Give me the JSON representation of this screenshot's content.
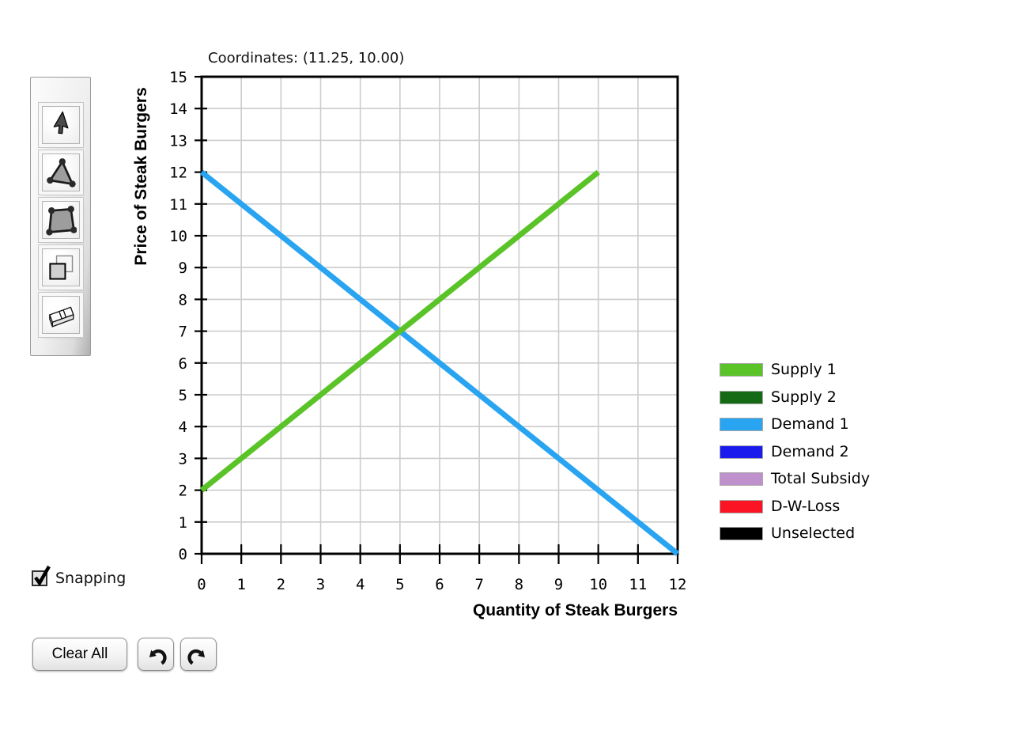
{
  "coordinates_label": "Coordinates: (11.25, 10.00)",
  "toolbar": {
    "tools": [
      {
        "id": "select",
        "icon": "cursor-icon"
      },
      {
        "id": "triangle",
        "icon": "triangle-icon"
      },
      {
        "id": "polygon",
        "icon": "polygon-icon"
      },
      {
        "id": "duplicate",
        "icon": "duplicate-icon"
      },
      {
        "id": "eraser",
        "icon": "eraser-icon"
      }
    ]
  },
  "chart_data": {
    "type": "line",
    "title": "",
    "xlabel": "Quantity of Steak Burgers",
    "ylabel": "Price of Steak Burgers",
    "xlim": [
      0,
      12
    ],
    "ylim": [
      0,
      15
    ],
    "xticks": [
      0,
      1,
      2,
      3,
      4,
      5,
      6,
      7,
      8,
      9,
      10,
      11,
      12
    ],
    "yticks": [
      0,
      1,
      2,
      3,
      4,
      5,
      6,
      7,
      8,
      9,
      10,
      11,
      12,
      13,
      14,
      15
    ],
    "grid": true,
    "grid_color": "#cccccc",
    "series": [
      {
        "name": "Demand 1",
        "color": "#29A4F1",
        "points": [
          [
            0,
            12
          ],
          [
            12,
            0
          ]
        ]
      },
      {
        "name": "Supply 1",
        "color": "#59C327",
        "points": [
          [
            0,
            2
          ],
          [
            10,
            12
          ]
        ]
      }
    ],
    "legend": {
      "position": "right",
      "entries": [
        {
          "label": "Supply 1",
          "color": "#59C327"
        },
        {
          "label": "Supply 2",
          "color": "#156B15"
        },
        {
          "label": "Demand 1",
          "color": "#29A4F1"
        },
        {
          "label": "Demand 2",
          "color": "#1B1BEE"
        },
        {
          "label": "Total Subsidy",
          "color": "#BE90CC"
        },
        {
          "label": "D-W-Loss",
          "color": "#FB1423"
        },
        {
          "label": "Unselected",
          "color": "#000000"
        }
      ]
    }
  },
  "snapping": {
    "label": "Snapping",
    "checked": true
  },
  "footer": {
    "clear_all_label": "Clear All"
  }
}
